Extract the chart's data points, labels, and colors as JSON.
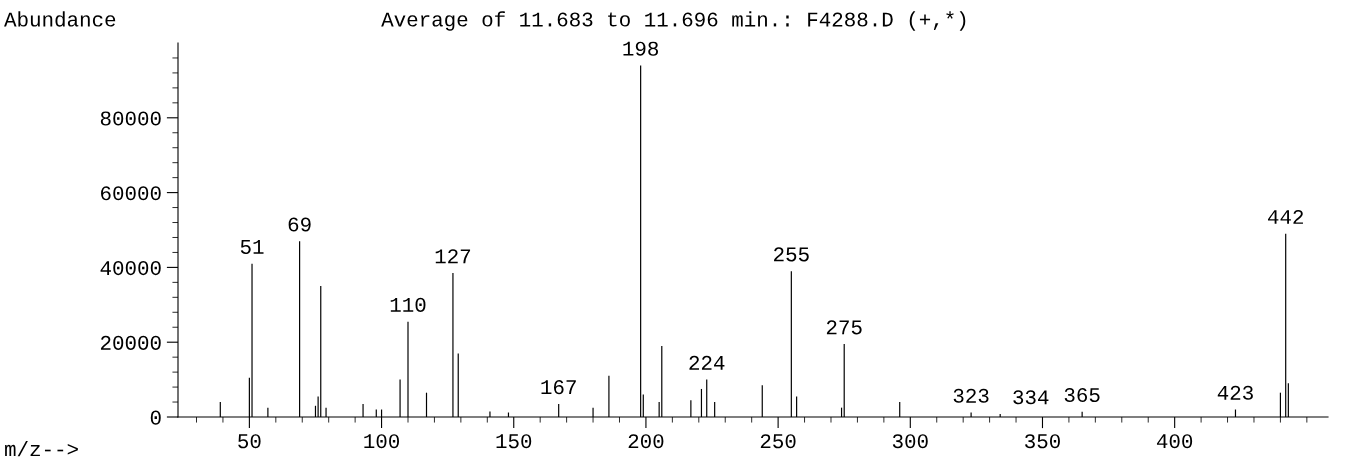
{
  "chart_data": {
    "type": "bar",
    "title": "Average of 11.683 to 11.696 min.: F4288.D (+,*)",
    "ylabel": "Abundance",
    "xlabel": "m/z-->",
    "x": [
      39,
      50,
      51,
      57,
      69,
      75,
      76,
      77,
      79,
      93,
      98,
      100,
      107,
      110,
      117,
      127,
      129,
      141,
      148,
      167,
      180,
      186,
      198,
      199,
      205,
      206,
      217,
      221,
      223,
      226,
      244,
      255,
      257,
      274,
      275,
      296,
      323,
      334,
      365,
      423,
      440,
      442,
      443
    ],
    "values": [
      4000,
      10500,
      41000,
      2500,
      47000,
      3000,
      5500,
      35000,
      2500,
      3500,
      2000,
      2000,
      10000,
      25500,
      6500,
      38500,
      17000,
      1500,
      1200,
      3500,
      2500,
      11000,
      94000,
      6000,
      4000,
      19000,
      4500,
      7500,
      10000,
      4000,
      8500,
      39000,
      5500,
      2500,
      19500,
      4000,
      1200,
      800,
      1400,
      2000,
      6500,
      49000,
      9000
    ],
    "color": "#000000",
    "xlim": [
      23,
      458
    ],
    "ylim": [
      0,
      100000
    ],
    "xticks": [
      {
        "value": 30,
        "label": null
      },
      {
        "value": 40,
        "label": null
      },
      50,
      {
        "value": 60,
        "label": null
      },
      {
        "value": 70,
        "label": null
      },
      {
        "value": 80,
        "label": null
      },
      {
        "value": 90,
        "label": null
      },
      100,
      {
        "value": 110,
        "label": null
      },
      {
        "value": 120,
        "label": null
      },
      {
        "value": 130,
        "label": null
      },
      {
        "value": 140,
        "label": null
      },
      150,
      {
        "value": 160,
        "label": null
      },
      {
        "value": 170,
        "label": null
      },
      {
        "value": 180,
        "label": null
      },
      {
        "value": 190,
        "label": null
      },
      200,
      {
        "value": 210,
        "label": null
      },
      {
        "value": 220,
        "label": null
      },
      {
        "value": 230,
        "label": null
      },
      {
        "value": 240,
        "label": null
      },
      250,
      {
        "value": 260,
        "label": null
      },
      {
        "value": 270,
        "label": null
      },
      {
        "value": 280,
        "label": null
      },
      {
        "value": 290,
        "label": null
      },
      300,
      {
        "value": 310,
        "label": null
      },
      {
        "value": 320,
        "label": null
      },
      {
        "value": 330,
        "label": null
      },
      {
        "value": 340,
        "label": null
      },
      350,
      {
        "value": 360,
        "label": null
      },
      {
        "value": 370,
        "label": null
      },
      {
        "value": 380,
        "label": null
      },
      {
        "value": 390,
        "label": null
      },
      400,
      {
        "value": 410,
        "label": null
      },
      {
        "value": 420,
        "label": null
      },
      {
        "value": 430,
        "label": null
      },
      {
        "value": 440,
        "label": null
      },
      {
        "value": 450,
        "label": null
      }
    ],
    "yticks": [
      0,
      {
        "value": 4000,
        "label": null
      },
      {
        "value": 8000,
        "label": null
      },
      {
        "value": 12000,
        "label": null
      },
      {
        "value": 16000,
        "label": null
      },
      20000,
      {
        "value": 24000,
        "label": null
      },
      {
        "value": 28000,
        "label": null
      },
      {
        "value": 32000,
        "label": null
      },
      {
        "value": 36000,
        "label": null
      },
      40000,
      {
        "value": 44000,
        "label": null
      },
      {
        "value": 48000,
        "label": null
      },
      {
        "value": 52000,
        "label": null
      },
      {
        "value": 56000,
        "label": null
      },
      60000,
      {
        "value": 64000,
        "label": null
      },
      {
        "value": 68000,
        "label": null
      },
      {
        "value": 72000,
        "label": null
      },
      {
        "value": 76000,
        "label": null
      },
      80000,
      {
        "value": 84000,
        "label": null
      },
      {
        "value": 88000,
        "label": null
      },
      {
        "value": 92000,
        "label": null
      },
      {
        "value": 96000,
        "label": null
      }
    ],
    "grid": false,
    "annotations": [
      {
        "text": "51",
        "x": 51,
        "y": 41000
      },
      {
        "text": "69",
        "x": 69,
        "y": 47000
      },
      {
        "text": "110",
        "x": 110,
        "y": 25500
      },
      {
        "text": "127",
        "x": 127,
        "y": 38500
      },
      {
        "text": "167",
        "x": 167,
        "y": 3500
      },
      {
        "text": "198",
        "x": 198,
        "y": 94000
      },
      {
        "text": "224",
        "x": 223,
        "y": 10000
      },
      {
        "text": "255",
        "x": 255,
        "y": 39000
      },
      {
        "text": "275",
        "x": 275,
        "y": 19500
      },
      {
        "text": "323",
        "x": 323,
        "y": 1200
      },
      {
        "text": "334",
        "x": 334,
        "y": 800
      },
      {
        "text": "365",
        "x": 365,
        "y": 1400
      },
      {
        "text": "423",
        "x": 423,
        "y": 2000
      },
      {
        "text": "442",
        "x": 442,
        "y": 49000
      }
    ]
  }
}
